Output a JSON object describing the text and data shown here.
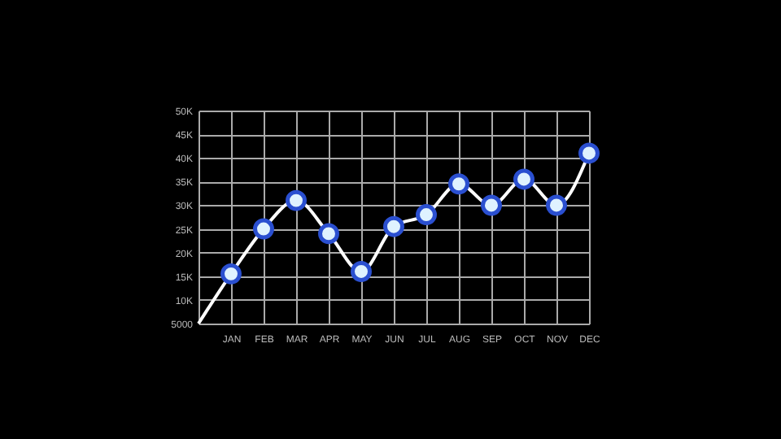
{
  "chart_data": {
    "type": "line",
    "categories": [
      null,
      "JAN",
      "FEB",
      "MAR",
      "APR",
      "MAY",
      "JUN",
      "JUL",
      "AUG",
      "SEP",
      "OCT",
      "NOV",
      "DEC"
    ],
    "ylim": [
      5000,
      50000
    ],
    "yticks": [
      5000,
      {
        "value": 10000,
        "label": "10K"
      },
      {
        "value": 15000,
        "label": "15K"
      },
      {
        "value": 20000,
        "label": "20K"
      },
      {
        "value": 25000,
        "label": "25K"
      },
      {
        "value": 30000,
        "label": "30K"
      },
      {
        "value": 35000,
        "label": "35K"
      },
      {
        "value": 40000,
        "label": "40K"
      },
      {
        "value": 45000,
        "label": "45K"
      },
      {
        "value": 50000,
        "label": "50K"
      }
    ],
    "grid": true,
    "series": [
      {
        "color": "#ffffff",
        "marker": "none",
        "values": [
          5000,
          15500,
          25000,
          31000,
          24000,
          16000,
          25500,
          28000,
          34500,
          30000,
          35500,
          30000,
          41000
        ]
      },
      {
        "type": "scatter",
        "color": "#dff2ff",
        "marker": "circle",
        "values": [
          null,
          15500,
          25000,
          31000,
          24000,
          16000,
          25500,
          28000,
          34500,
          30000,
          35500,
          30000,
          41000
        ]
      }
    ]
  }
}
